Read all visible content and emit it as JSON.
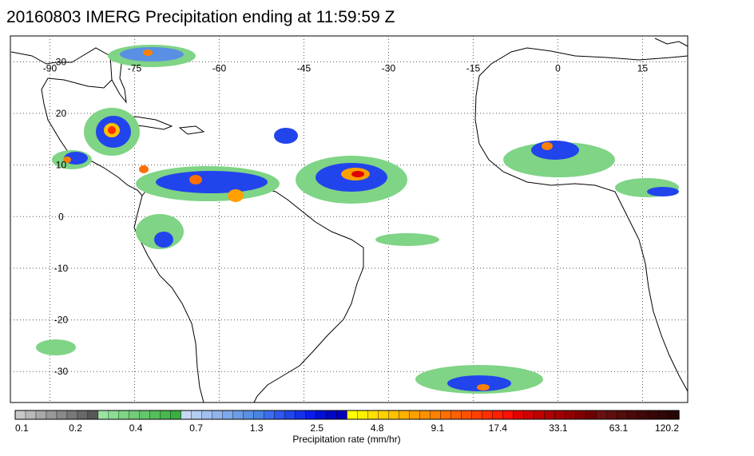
{
  "title": "20160803 IMERG Precipitation ending at 11:59:59 Z",
  "map": {
    "lon_labels": [
      "-90",
      "-75",
      "-60",
      "-45",
      "-30",
      "-15",
      "0",
      "15"
    ],
    "lat_labels": [
      "30",
      "20",
      "10",
      "0",
      "-10",
      "-20",
      "-30"
    ],
    "lon_values": [
      -90,
      -75,
      -60,
      -45,
      -30,
      -15,
      0,
      15
    ],
    "lat_values": [
      30,
      20,
      10,
      0,
      -10,
      -20,
      -30
    ],
    "gridlines": "dotted",
    "lon_range": [
      -97,
      23
    ],
    "lat_range": [
      -36,
      35
    ]
  },
  "colorbar": {
    "title": "Precipitation rate (mm/hr)",
    "tick_labels": [
      "0.1",
      "0.2",
      "0.4",
      "0.7",
      "1.3",
      "2.5",
      "4.8",
      "9.1",
      "17.4",
      "33.1",
      "63.1",
      "120.2"
    ],
    "colors": [
      "#c8c8c8",
      "#b8b8b8",
      "#a8a8a8",
      "#989898",
      "#888888",
      "#787878",
      "#686868",
      "#585858",
      "#9be3a3",
      "#8ddc95",
      "#7fd486",
      "#71cd78",
      "#63c66a",
      "#55be5c",
      "#47b74e",
      "#39af40",
      "#c6d8f5",
      "#b4ccf2",
      "#a2c0ef",
      "#90b4ec",
      "#7ea8e9",
      "#6c9ce6",
      "#5a90e3",
      "#4884e0",
      "#3b6cf0",
      "#2e58ee",
      "#2244ec",
      "#1630ea",
      "#0a1ce8",
      "#0010d8",
      "#0008c8",
      "#0000b8",
      "#ffff00",
      "#fff000",
      "#ffe000",
      "#ffd000",
      "#ffc000",
      "#ffb000",
      "#ffa000",
      "#ff9000",
      "#ff8000",
      "#ff7000",
      "#ff6000",
      "#ff5000",
      "#ff4000",
      "#ff3000",
      "#ff2000",
      "#ff1000",
      "#e00000",
      "#d00000",
      "#c00000",
      "#b00000",
      "#a00000",
      "#900000",
      "#800000",
      "#700000",
      "#6a1010",
      "#5f0e0e",
      "#540c0c",
      "#4a0a0a",
      "#400808",
      "#380707",
      "#300606",
      "#280505"
    ]
  }
}
